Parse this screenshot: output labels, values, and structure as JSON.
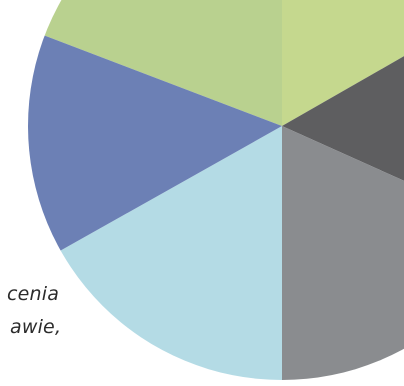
{
  "diagram": {
    "segments": [
      {
        "name": "segment-top-left",
        "color": "#b9d18f"
      },
      {
        "name": "segment-top-right",
        "color": "#c5d88e"
      },
      {
        "name": "segment-right-dark",
        "color": "#5e5e60"
      },
      {
        "name": "segment-bottom-right-gray",
        "color": "#8a8c8f"
      },
      {
        "name": "segment-bottom-light-blue",
        "color": "#b4dbe5"
      },
      {
        "name": "segment-left-blue",
        "color": "#6c80b5"
      }
    ]
  },
  "text": {
    "line_1": "cenia",
    "line_2": "awie,"
  }
}
